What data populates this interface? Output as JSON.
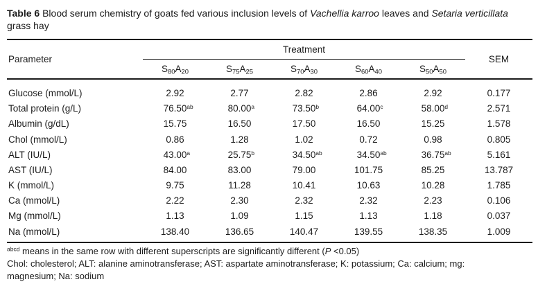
{
  "title": {
    "label": "Table 6",
    "segments": [
      {
        "text": " Blood serum chemistry of goats fed various inclusion levels of ",
        "italic": false
      },
      {
        "text": "Vachellia karroo",
        "italic": true
      },
      {
        "text": " leaves and ",
        "italic": false
      },
      {
        "text": "Setaria verticillata",
        "italic": true
      },
      {
        "text": " grass hay",
        "italic": false
      }
    ]
  },
  "table": {
    "parameter_header": "Parameter",
    "treatment_header": "Treatment",
    "sem_header": "SEM",
    "treatments": [
      {
        "s_label": "S",
        "s_sub": "80",
        "a_label": "A",
        "a_sub": "20"
      },
      {
        "s_label": "S",
        "s_sub": "75",
        "a_label": "A",
        "a_sub": "25"
      },
      {
        "s_label": "S",
        "s_sub": "70",
        "a_label": "A",
        "a_sub": "30"
      },
      {
        "s_label": "S",
        "s_sub": "60",
        "a_label": "A",
        "a_sub": "40"
      },
      {
        "s_label": "S",
        "s_sub": "50",
        "a_label": "A",
        "a_sub": "50"
      }
    ],
    "rows": [
      {
        "parameter": "Glucose (mmol/L)",
        "values": [
          {
            "v": "2.92"
          },
          {
            "v": "2.77"
          },
          {
            "v": "2.82"
          },
          {
            "v": "2.86"
          },
          {
            "v": "2.92"
          }
        ],
        "sem": "0.177"
      },
      {
        "parameter": "Total protein (g/L)",
        "values": [
          {
            "v": "76.50",
            "sup": "ab"
          },
          {
            "v": "80.00",
            "sup": "a"
          },
          {
            "v": "73.50",
            "sup": "b"
          },
          {
            "v": "64.00",
            "sup": "c"
          },
          {
            "v": "58.00",
            "sup": "d"
          }
        ],
        "sem": "2.571"
      },
      {
        "parameter": "Albumin (g/dL)",
        "values": [
          {
            "v": "15.75"
          },
          {
            "v": "16.50"
          },
          {
            "v": "17.50"
          },
          {
            "v": "16.50"
          },
          {
            "v": "15.25"
          }
        ],
        "sem": "1.578"
      },
      {
        "parameter": "Chol (mmol/L)",
        "values": [
          {
            "v": "0.86"
          },
          {
            "v": "1.28"
          },
          {
            "v": "1.02"
          },
          {
            "v": "0.72"
          },
          {
            "v": "0.98"
          }
        ],
        "sem": "0.805"
      },
      {
        "parameter": "ALT (IU/L)",
        "values": [
          {
            "v": "43.00",
            "sup": "a"
          },
          {
            "v": "25.75",
            "sup": "b"
          },
          {
            "v": "34.50",
            "sup": "ab"
          },
          {
            "v": "34.50",
            "sup": "ab"
          },
          {
            "v": "36.75",
            "sup": "ab"
          }
        ],
        "sem": "5.161"
      },
      {
        "parameter": "AST (IU/L)",
        "values": [
          {
            "v": "84.00"
          },
          {
            "v": "83.00"
          },
          {
            "v": "79.00"
          },
          {
            "v": "101.75"
          },
          {
            "v": "85.25"
          }
        ],
        "sem": "13.787"
      },
      {
        "parameter": "K (mmol/L)",
        "values": [
          {
            "v": "9.75"
          },
          {
            "v": "11.28"
          },
          {
            "v": "10.41"
          },
          {
            "v": "10.63"
          },
          {
            "v": "10.28"
          }
        ],
        "sem": "1.785"
      },
      {
        "parameter": "Ca (mmol/L)",
        "values": [
          {
            "v": "2.22"
          },
          {
            "v": "2.30"
          },
          {
            "v": "2.32"
          },
          {
            "v": "2.32"
          },
          {
            "v": "2.23"
          }
        ],
        "sem": "0.106"
      },
      {
        "parameter": "Mg (mmol/L)",
        "values": [
          {
            "v": "1.13"
          },
          {
            "v": "1.09"
          },
          {
            "v": "1.15"
          },
          {
            "v": "1.13"
          },
          {
            "v": "1.18"
          }
        ],
        "sem": "0.037"
      },
      {
        "parameter": "Na (mmol/L)",
        "values": [
          {
            "v": "138.40"
          },
          {
            "v": "136.65"
          },
          {
            "v": "140.47"
          },
          {
            "v": "139.55"
          },
          {
            "v": "138.35"
          }
        ],
        "sem": "1.009"
      }
    ]
  },
  "footnotes": {
    "significance": {
      "sup": "abcd",
      "pre": " means in the same row with different superscripts are significantly different (",
      "p_italic": "P",
      "post": " <0.05)"
    },
    "abbreviations": "Chol: cholesterol; ALT: alanine aminotransferase; AST: aspartate aminotransferase; K: potassium; Ca: calcium; mg: magnesium; Na: sodium"
  },
  "colors": {
    "text": "#1b1b1b",
    "rule": "#1b1b1b",
    "background": "#ffffff"
  }
}
